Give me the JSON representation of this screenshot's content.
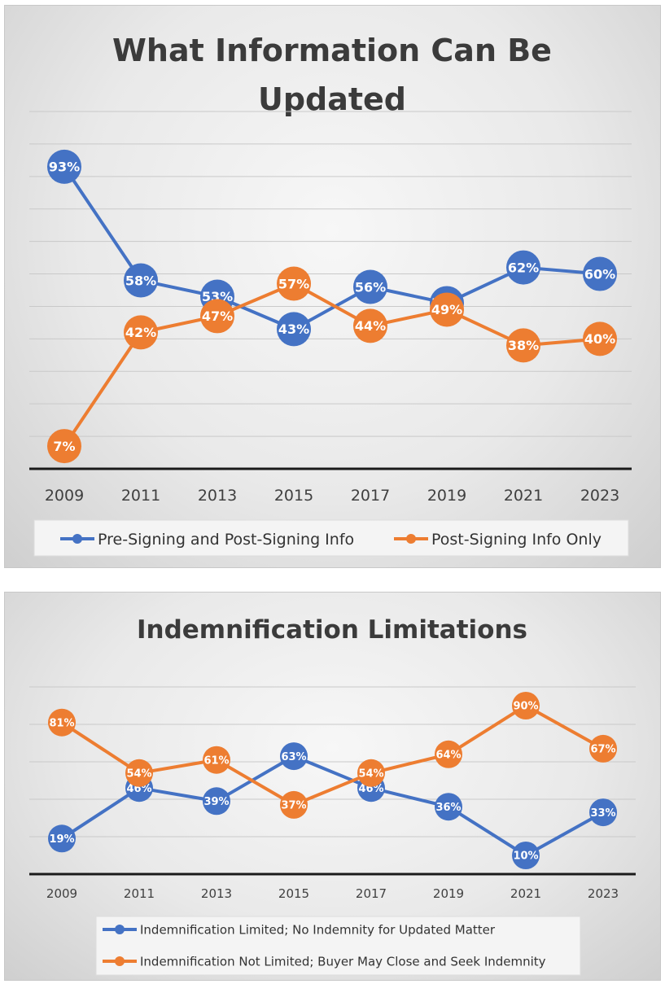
{
  "chart_data": [
    {
      "type": "line",
      "title_lines": [
        "What Information Can Be",
        "Updated"
      ],
      "categories": [
        "2009",
        "2011",
        "2013",
        "2015",
        "2017",
        "2019",
        "2021",
        "2023"
      ],
      "series": [
        {
          "name": "Pre-Signing and Post-Signing Info",
          "color": "#4472c4",
          "values": [
            93,
            58,
            53,
            43,
            56,
            51,
            62,
            60
          ]
        },
        {
          "name": "Post-Signing Info Only",
          "color": "#ed7d31",
          "values": [
            7,
            42,
            47,
            57,
            44,
            49,
            38,
            40
          ]
        }
      ],
      "data_label_format": "{v}%",
      "grid": true,
      "legend_position": "bottom"
    },
    {
      "type": "line",
      "title_lines": [
        "Indemnification Limitations"
      ],
      "categories": [
        "2009",
        "2011",
        "2013",
        "2015",
        "2017",
        "2019",
        "2021",
        "2023"
      ],
      "series": [
        {
          "name": "Indemnification Limited; No Indemnity for Updated Matter",
          "color": "#4472c4",
          "values": [
            19,
            46,
            39,
            63,
            46,
            36,
            10,
            33
          ]
        },
        {
          "name": "Indemnification Not Limited; Buyer May Close and Seek Indemnity",
          "color": "#ed7d31",
          "values": [
            81,
            54,
            61,
            37,
            54,
            64,
            90,
            67
          ]
        }
      ],
      "data_label_format": "{v}%",
      "grid": true,
      "legend_position": "bottom"
    }
  ]
}
